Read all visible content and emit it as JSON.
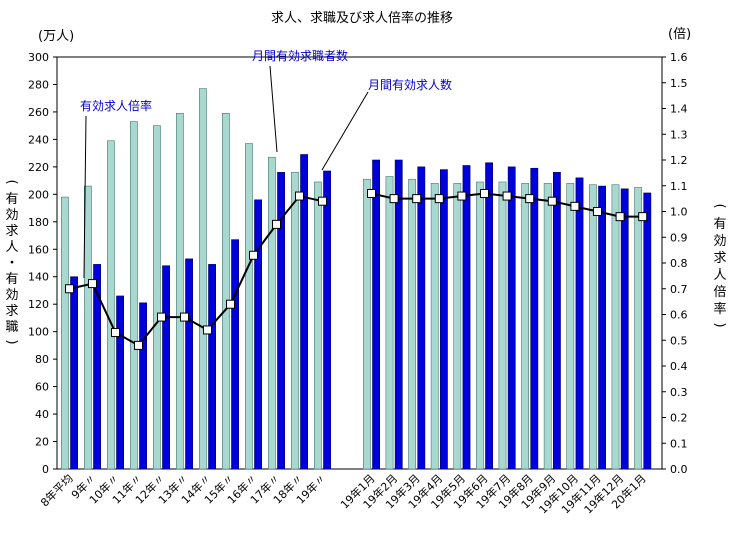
{
  "chart_data": {
    "type": "bar",
    "title": "求人、求職及び求人倍率の推移",
    "left_unit": "(万人)",
    "right_unit": "(倍)",
    "ylabel_left": "(有効求人・有効求職)",
    "ylabel_right": "(有効求人倍率)",
    "ylim_left": [
      0,
      300
    ],
    "ylim_right": [
      0.0,
      1.6
    ],
    "left_ticks": [
      "0",
      "20",
      "40",
      "60",
      "80",
      "100",
      "120",
      "140",
      "160",
      "180",
      "200",
      "220",
      "240",
      "260",
      "280",
      "300"
    ],
    "right_ticks": [
      "0.0",
      "0.1",
      "0.2",
      "0.3",
      "0.4",
      "0.5",
      "0.6",
      "0.7",
      "0.8",
      "0.9",
      "1.0",
      "1.1",
      "1.2",
      "1.3",
      "1.4",
      "1.5",
      "1.6"
    ],
    "grid": false,
    "categories_annual": [
      "8年平均",
      "9年〃",
      "10年〃",
      "11年〃",
      "12年〃",
      "13年〃",
      "14年〃",
      "15年〃",
      "16年〃",
      "17年〃",
      "18年〃",
      "19年〃"
    ],
    "categories_monthly": [
      "19年1月",
      "19年2月",
      "19年3月",
      "19年4月",
      "19年5月",
      "19年6月",
      "19年7月",
      "19年8月",
      "19年9月",
      "19年10月",
      "19年11月",
      "19年12月",
      "20年1月"
    ],
    "series": [
      {
        "name": "月間有効求職者数",
        "color": "#a8d8d0",
        "annual": [
          198,
          206,
          239,
          253,
          250,
          259,
          277,
          259,
          237,
          227,
          216,
          209
        ],
        "monthly": [
          211,
          213,
          211,
          208,
          208,
          209,
          209,
          208,
          208,
          208,
          207,
          207,
          205
        ]
      },
      {
        "name": "月間有効求人数",
        "color": "#0000dd",
        "annual": [
          140,
          149,
          126,
          121,
          148,
          153,
          149,
          167,
          196,
          216,
          229,
          217
        ],
        "monthly": [
          225,
          225,
          220,
          218,
          221,
          223,
          220,
          219,
          216,
          212,
          206,
          204,
          201
        ]
      },
      {
        "name": "有効求人倍率",
        "type": "line",
        "axis": "right",
        "color": "#000000",
        "annual": [
          0.7,
          0.72,
          0.53,
          0.48,
          0.59,
          0.59,
          0.54,
          0.64,
          0.83,
          0.95,
          1.06,
          1.04
        ],
        "monthly": [
          1.07,
          1.05,
          1.05,
          1.05,
          1.06,
          1.07,
          1.06,
          1.05,
          1.04,
          1.02,
          1.0,
          0.98,
          0.98
        ]
      }
    ]
  }
}
